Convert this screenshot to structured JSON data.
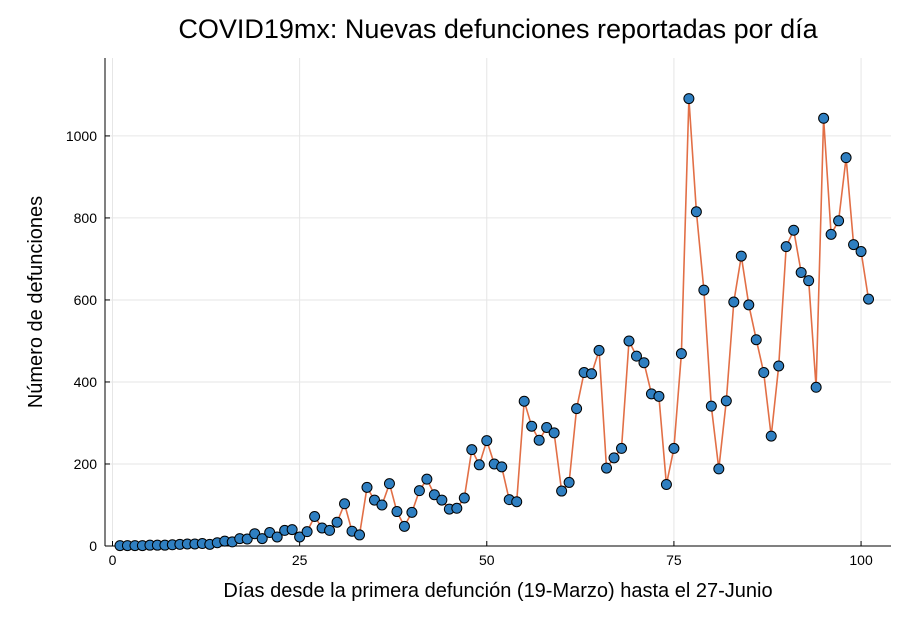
{
  "chart_data": {
    "type": "line",
    "title": "COVID19mx: Nuevas defunciones reportadas por día",
    "xlabel": "Días desde la primera defunción (19-Marzo) hasta el 27-Junio",
    "ylabel": "Número de defunciones",
    "xlim": [
      -1,
      104
    ],
    "ylim": [
      0,
      1190
    ],
    "xticks": [
      0,
      25,
      50,
      75,
      100
    ],
    "yticks": [
      0,
      200,
      400,
      600,
      800,
      1000
    ],
    "grid": true,
    "legend": "none",
    "colors": {
      "line": "#e26f46",
      "marker_fill": "#2f7fc1",
      "marker_edge": "#000000"
    },
    "series": [
      {
        "x": [
          1,
          2,
          3,
          4,
          5,
          6,
          7,
          8,
          9,
          10,
          11,
          12,
          13,
          14,
          15,
          16,
          17,
          18,
          19,
          20,
          21,
          22,
          23,
          24,
          25,
          26,
          27,
          28,
          29,
          30,
          31,
          32,
          33,
          34,
          35,
          36,
          37,
          38,
          39,
          40,
          41,
          42,
          43,
          44,
          45,
          46,
          47,
          48,
          49,
          50,
          51,
          52,
          53,
          54,
          55,
          56,
          57,
          58,
          59,
          60,
          61,
          62,
          63,
          64,
          65,
          66,
          67,
          68,
          69,
          70,
          71,
          72,
          73,
          74,
          75,
          76,
          77,
          78,
          79,
          80,
          81,
          82,
          83,
          84,
          85,
          86,
          87,
          88,
          89,
          90,
          91,
          92,
          93,
          94,
          95,
          96,
          97,
          98,
          99,
          100,
          101
        ],
        "values": [
          1,
          1,
          1,
          1,
          2,
          2,
          2,
          3,
          4,
          5,
          5,
          6,
          4,
          8,
          12,
          10,
          18,
          17,
          30,
          18,
          33,
          22,
          38,
          40,
          22,
          35,
          72,
          44,
          38,
          58,
          103,
          36,
          27,
          143,
          112,
          100,
          152,
          84,
          48,
          82,
          135,
          163,
          125,
          112,
          90,
          92,
          117,
          235,
          198,
          257,
          200,
          193,
          113,
          108,
          353,
          292,
          258,
          289,
          276,
          134,
          155,
          335,
          423,
          420,
          477,
          190,
          215,
          238,
          500,
          463,
          447,
          371,
          365,
          150,
          238,
          469,
          1091,
          815,
          624,
          341,
          188,
          354,
          595,
          707,
          588,
          503,
          423,
          268,
          439,
          730,
          770,
          667,
          647,
          387,
          1043,
          760,
          793,
          947,
          735,
          718,
          602
        ]
      }
    ]
  }
}
